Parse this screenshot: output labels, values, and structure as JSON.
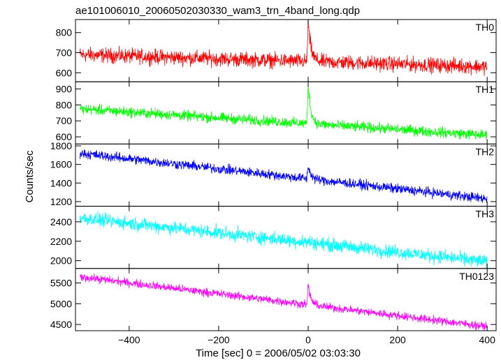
{
  "title": "ae101006010_20060502030330_wam3_trn_4band_long.qdp",
  "chart_data": {
    "type": "line",
    "title": "ae101006010_20060502030330_wam3_trn_4band_long.qdp",
    "xlabel": "Time [sec] 0 = 2006/05/02 03:03:30",
    "ylabel": "Counts/sec",
    "xlim": [
      -520,
      420
    ],
    "x_ticks": [
      -400,
      -200,
      0,
      200,
      400
    ],
    "x_tick_labels": [
      "−400",
      "−200",
      "0",
      "200",
      "400"
    ],
    "grid": false,
    "panels": [
      {
        "name": "TH0",
        "color": "#ff0000",
        "ylim": [
          555,
          865
        ],
        "y_ticks": [
          600,
          700,
          800
        ],
        "trend": [
          [
            -510,
            690
          ],
          [
            400,
            630
          ]
        ],
        "noise": 32,
        "peak": {
          "x": 0,
          "y": 860
        }
      },
      {
        "name": "TH1",
        "color": "#00ff00",
        "ylim": [
          555,
          945
        ],
        "y_ticks": [
          600,
          700,
          800,
          900
        ],
        "trend": [
          [
            -510,
            775
          ],
          [
            400,
            610
          ]
        ],
        "noise": 28,
        "peak": {
          "x": 0,
          "y": 935
        }
      },
      {
        "name": "TH2",
        "color": "#0000ff",
        "ylim": [
          1150,
          1820
        ],
        "y_ticks": [
          1200,
          1400,
          1600,
          1800
        ],
        "trend": [
          [
            -510,
            1720
          ],
          [
            400,
            1230
          ]
        ],
        "noise": 45,
        "peak": {
          "x": 0,
          "y": 1590
        }
      },
      {
        "name": "TH3",
        "color": "#00ffff",
        "ylim": [
          1920,
          2560
        ],
        "y_ticks": [
          2000,
          2200,
          2400
        ],
        "trend": [
          [
            -510,
            2440
          ],
          [
            400,
            1990
          ]
        ],
        "noise": 60,
        "peak": {
          "x": 0,
          "y": 2200
        }
      },
      {
        "name": "TH0123",
        "color": "#ff00ff",
        "ylim": [
          4350,
          5850
        ],
        "y_ticks": [
          4500,
          5000,
          5500
        ],
        "trend": [
          [
            -510,
            5650
          ],
          [
            400,
            4450
          ]
        ],
        "noise": 85,
        "peak": {
          "x": 0,
          "y": 5450
        }
      }
    ]
  }
}
